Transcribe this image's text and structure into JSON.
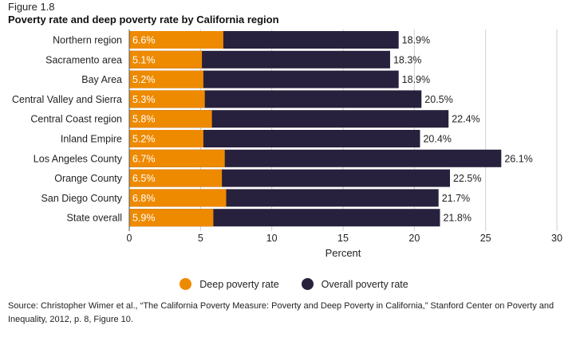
{
  "figure_label": "Figure 1.8",
  "colors": {
    "deep": "#ee8a00",
    "overall": "#27213d",
    "grid": "#cfcfcf"
  },
  "legend": [
    {
      "label": "Deep poverty rate",
      "color": "#ee8a00"
    },
    {
      "label": "Overall poverty rate",
      "color": "#27213d"
    }
  ],
  "source": "Source: Christopher Wimer et al., “The California Poverty Measure: Poverty and Deep Poverty in California,” Stanford Center on Poverty and Inequality, 2012, p. 8, Figure 10.",
  "chart_data": {
    "type": "bar",
    "orientation": "horizontal",
    "title": "Poverty rate and deep poverty rate by California region",
    "xlabel": "Percent",
    "ylabel": "",
    "xlim": [
      0,
      30
    ],
    "xticks": [
      0,
      5,
      10,
      15,
      20,
      25,
      30
    ],
    "grid": true,
    "legend_position": "bottom",
    "categories": [
      "Northern region",
      "Sacramento area",
      "Bay Area",
      "Central Valley and Sierra",
      "Central Coast region",
      "Inland Empire",
      "Los Angeles County",
      "Orange County",
      "San Diego County",
      "State overall"
    ],
    "series": [
      {
        "name": "Deep poverty rate",
        "values": [
          6.6,
          5.1,
          5.2,
          5.3,
          5.8,
          5.2,
          6.7,
          6.5,
          6.8,
          5.9
        ]
      },
      {
        "name": "Overall poverty rate",
        "values": [
          18.9,
          18.3,
          18.9,
          20.5,
          22.4,
          20.4,
          26.1,
          22.5,
          21.7,
          21.8
        ]
      }
    ],
    "deep_labels": [
      "6.6%",
      "5.1%",
      "5.2%",
      "5.3%",
      "5.8%",
      "5.2%",
      "6.7%",
      "6.5%",
      "6.8%",
      "5.9%"
    ],
    "overall_labels": [
      "18.9%",
      "18.3%",
      "18.9%",
      "20.5%",
      "22.4%",
      "20.4%",
      "26.1%",
      "22.5%",
      "21.7%",
      "21.8%"
    ]
  }
}
